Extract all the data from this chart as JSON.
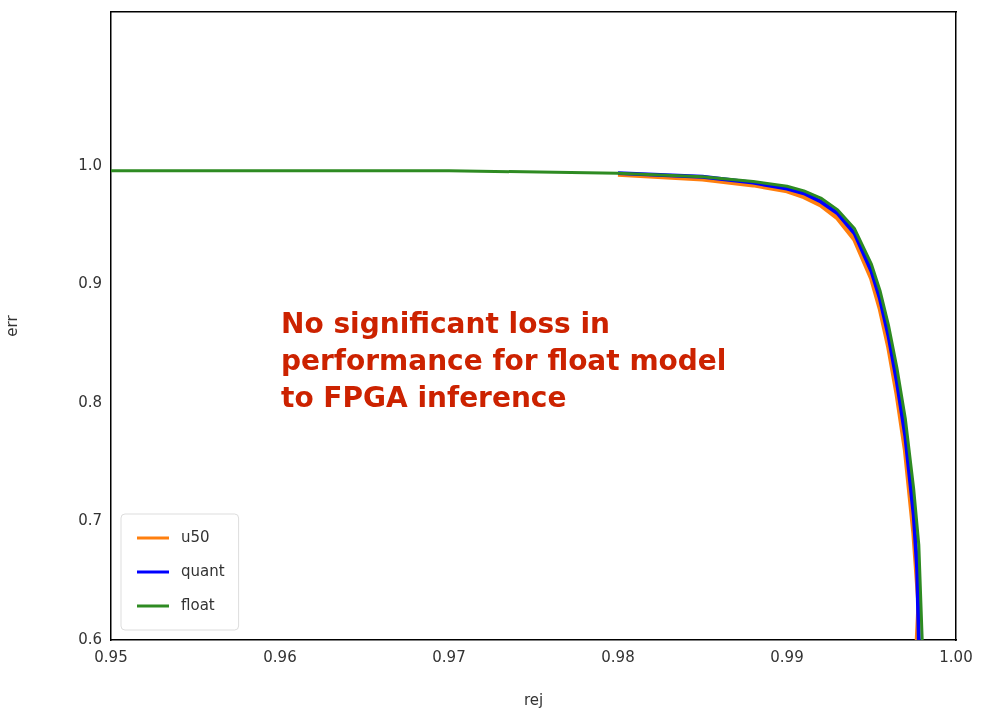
{
  "chart_data": {
    "type": "line",
    "xlabel": "rej",
    "ylabel": "err",
    "xlim": [
      0.95,
      1.0
    ],
    "ylim": [
      0.6,
      1.13
    ],
    "xticks": [
      0.95,
      0.96,
      0.97,
      0.98,
      0.99,
      {
        "value": 1.0,
        "label": "1.00"
      }
    ],
    "yticks": [
      0.6,
      0.7,
      0.8,
      0.9,
      {
        "value": 1.0,
        "label": "1.0"
      }
    ],
    "legend": "bottom left",
    "grid": false,
    "marker": "none",
    "line_style": "solid",
    "annotations": [
      "No significant loss in performance for float model to FPGA inference"
    ],
    "series": [
      {
        "name": "u50",
        "color": "#ff7f0e",
        "x": [
          0.98,
          0.985,
          0.988,
          0.99,
          0.991,
          0.992,
          0.993,
          0.994,
          0.995,
          0.9955,
          0.996,
          0.9965,
          0.997,
          0.9975,
          0.9978,
          0.9977
        ],
        "values": [
          0.993,
          0.989,
          0.984,
          0.979,
          0.974,
          0.967,
          0.956,
          0.938,
          0.905,
          0.88,
          0.848,
          0.808,
          0.76,
          0.69,
          0.63,
          0.6
        ]
      },
      {
        "name": "quant",
        "color": "#0000ff",
        "x": [
          0.98,
          0.985,
          0.988,
          0.99,
          0.991,
          0.992,
          0.993,
          0.994,
          0.995,
          0.9955,
          0.996,
          0.9965,
          0.997,
          0.9975,
          0.9977,
          0.9978
        ],
        "values": [
          0.994,
          0.991,
          0.986,
          0.981,
          0.977,
          0.97,
          0.96,
          0.943,
          0.911,
          0.888,
          0.857,
          0.818,
          0.772,
          0.705,
          0.66,
          0.6
        ]
      },
      {
        "name": "float",
        "color": "#2e8b22",
        "x": [
          0.95,
          0.97,
          0.98,
          0.985,
          0.988,
          0.99,
          0.991,
          0.992,
          0.993,
          0.994,
          0.995,
          0.9955,
          0.996,
          0.9965,
          0.997,
          0.9975,
          0.9978,
          0.998
        ],
        "values": [
          0.996,
          0.996,
          0.994,
          0.991,
          0.987,
          0.983,
          0.979,
          0.973,
          0.963,
          0.947,
          0.917,
          0.895,
          0.866,
          0.83,
          0.787,
          0.727,
          0.68,
          0.6
        ]
      }
    ]
  }
}
